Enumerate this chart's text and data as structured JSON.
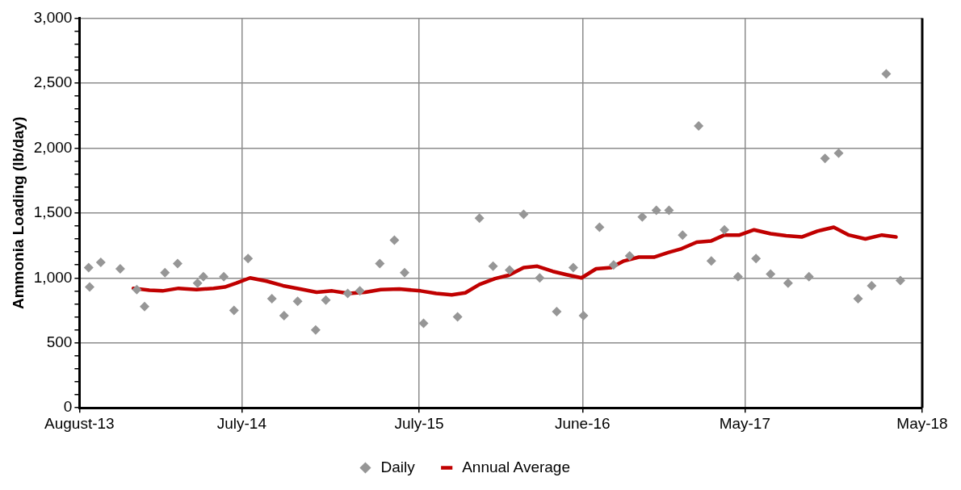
{
  "chart_data": {
    "type": "scatter",
    "ylabel": "Ammonia Loading (lb/day)",
    "legend": "bottom",
    "grid": true,
    "marker": "diamond",
    "xlim": [
      "2013-08-01",
      "2018-05-01"
    ],
    "xticks": [
      {
        "value": "2013-08-01",
        "label": "August-13"
      },
      {
        "value": "2014-07-01",
        "label": "July-14"
      },
      {
        "value": "2015-07-01",
        "label": "July-15"
      },
      {
        "value": "2016-06-01",
        "label": "June-16"
      },
      {
        "value": "2017-05-01",
        "label": "May-17"
      },
      {
        "value": "2018-05-01",
        "label": "May-18"
      }
    ],
    "ylim": [
      0,
      3000
    ],
    "yticks": [
      {
        "value": 0,
        "label": "0"
      },
      {
        "value": 100,
        "label": null
      },
      {
        "value": 200,
        "label": null
      },
      {
        "value": 300,
        "label": null
      },
      {
        "value": 400,
        "label": null
      },
      {
        "value": 500,
        "label": "500"
      },
      {
        "value": 600,
        "label": null
      },
      {
        "value": 700,
        "label": null
      },
      {
        "value": 800,
        "label": null
      },
      {
        "value": 900,
        "label": null
      },
      {
        "value": 1000,
        "label": "1,000"
      },
      {
        "value": 1100,
        "label": null
      },
      {
        "value": 1200,
        "label": null
      },
      {
        "value": 1300,
        "label": null
      },
      {
        "value": 1400,
        "label": null
      },
      {
        "value": 1500,
        "label": "1,500"
      },
      {
        "value": 1600,
        "label": null
      },
      {
        "value": 1700,
        "label": null
      },
      {
        "value": 1800,
        "label": null
      },
      {
        "value": 1900,
        "label": null
      },
      {
        "value": 2000,
        "label": "2,000"
      },
      {
        "value": 2100,
        "label": null
      },
      {
        "value": 2200,
        "label": null
      },
      {
        "value": 2300,
        "label": null
      },
      {
        "value": 2400,
        "label": null
      },
      {
        "value": 2500,
        "label": "2,500"
      },
      {
        "value": 2600,
        "label": null
      },
      {
        "value": 2700,
        "label": null
      },
      {
        "value": 2800,
        "label": null
      },
      {
        "value": 2900,
        "label": null
      },
      {
        "value": 3000,
        "label": "3,000"
      }
    ],
    "series": [
      {
        "name": "Daily",
        "type": "scatter",
        "color": "#969696",
        "x": [
          "2013-08-20",
          "2013-08-22",
          "2013-09-14",
          "2013-10-24",
          "2013-11-27",
          "2013-12-13",
          "2014-01-24",
          "2014-02-19",
          "2014-04-01",
          "2014-04-13",
          "2014-05-25",
          "2014-06-15",
          "2014-07-14",
          "2014-09-01",
          "2014-09-26",
          "2014-10-24",
          "2014-11-30",
          "2014-12-21",
          "2015-02-04",
          "2015-03-01",
          "2015-04-11",
          "2015-05-11",
          "2015-06-01",
          "2015-07-10",
          "2015-09-18",
          "2015-11-02",
          "2015-11-30",
          "2016-01-03",
          "2016-02-01",
          "2016-03-05",
          "2016-04-09",
          "2016-05-13",
          "2016-06-03",
          "2016-07-06",
          "2016-08-04",
          "2016-09-06",
          "2016-10-02",
          "2016-10-31",
          "2016-11-26",
          "2016-12-24",
          "2017-01-26",
          "2017-02-21",
          "2017-03-20",
          "2017-04-17",
          "2017-05-24",
          "2017-06-23",
          "2017-07-29",
          "2017-09-10",
          "2017-10-13",
          "2017-11-10",
          "2017-12-20",
          "2018-01-17",
          "2018-02-16",
          "2018-03-17"
        ],
        "values": [
          1080,
          930,
          1120,
          1070,
          910,
          780,
          1040,
          1110,
          960,
          1010,
          1010,
          750,
          1150,
          840,
          710,
          820,
          600,
          830,
          880,
          900,
          1110,
          1290,
          1040,
          650,
          700,
          1460,
          1090,
          1060,
          1490,
          1000,
          740,
          1080,
          710,
          1390,
          1100,
          1170,
          1470,
          1520,
          1520,
          1330,
          2170,
          1130,
          1370,
          1010,
          1150,
          1030,
          960,
          1010,
          1920,
          1960,
          840,
          940,
          2570,
          980
        ]
      },
      {
        "name": "Annual Average",
        "type": "line",
        "color": "#c00000",
        "marker": "none",
        "line_style": "solid",
        "x": [
          "2013-11-20",
          "2013-12-23",
          "2014-01-19",
          "2014-02-21",
          "2014-03-30",
          "2014-05-04",
          "2014-05-27",
          "2014-06-20",
          "2014-07-18",
          "2014-08-21",
          "2014-09-24",
          "2014-10-29",
          "2014-12-02",
          "2015-01-03",
          "2015-02-06",
          "2015-03-12",
          "2015-04-13",
          "2015-05-21",
          "2015-07-04",
          "2015-08-05",
          "2015-09-06",
          "2015-10-04",
          "2015-11-02",
          "2015-12-04",
          "2016-01-01",
          "2016-02-01",
          "2016-02-29",
          "2016-04-01",
          "2016-04-29",
          "2016-05-30",
          "2016-06-29",
          "2016-07-30",
          "2016-08-25",
          "2016-09-25",
          "2016-10-26",
          "2016-11-24",
          "2016-12-22",
          "2017-01-22",
          "2017-02-21",
          "2017-03-20",
          "2017-04-20",
          "2017-05-20",
          "2017-06-23",
          "2017-07-25",
          "2017-08-26",
          "2017-09-27",
          "2017-10-31",
          "2017-12-01",
          "2018-01-04",
          "2018-02-07",
          "2018-03-08"
        ],
        "values": [
          920,
          905,
          900,
          920,
          910,
          920,
          930,
          960,
          1000,
          975,
          940,
          915,
          890,
          900,
          880,
          890,
          910,
          915,
          900,
          880,
          870,
          885,
          950,
          995,
          1020,
          1080,
          1090,
          1050,
          1025,
          1000,
          1070,
          1080,
          1130,
          1160,
          1160,
          1195,
          1225,
          1275,
          1285,
          1330,
          1330,
          1370,
          1340,
          1325,
          1315,
          1360,
          1390,
          1330,
          1300,
          1330,
          1315
        ]
      }
    ]
  }
}
